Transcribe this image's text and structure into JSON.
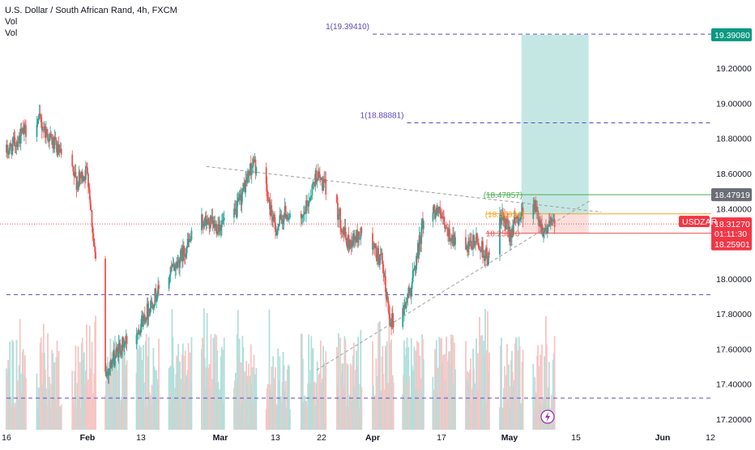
{
  "header": {
    "title": "U.S. Dollar / South African Rand, 4h, FXCM",
    "indicator_1": "Vol",
    "indicator_2": "Vol"
  },
  "colors": {
    "up": "#26a69a",
    "down": "#ef5350",
    "vol_up": "#b2dfdb",
    "vol_down": "#f6c6c5",
    "target_zone": "#b2dfdb",
    "stop_zone": "#fbd4d2",
    "fib_dash": "#5b4bbf",
    "trend_dash": "#9e9e9e",
    "entry_line": "#f6a623",
    "target_line": "#4caf50",
    "stop_line": "#ef5350",
    "current_price": "#f23645",
    "gray_tag": "#6b6e76",
    "green_tag": "#089981"
  },
  "chart_data": {
    "type": "candlestick",
    "symbol": "USDZAR",
    "timeframe": "4h",
    "ylim": [
      17.14,
      19.52
    ],
    "y_ticks": [
      "19.20000",
      "19.00000",
      "18.80000",
      "18.60000",
      "18.40000",
      "18.20000",
      "18.00000",
      "17.80000",
      "17.60000",
      "17.40000",
      "17.20000"
    ],
    "y_tick_values": [
      19.2,
      19.0,
      18.8,
      18.6,
      18.4,
      18.2,
      18.0,
      17.8,
      17.6,
      17.4,
      17.2
    ],
    "x_ticks": [
      "16",
      "Feb",
      "13",
      "Mar",
      "13",
      "22",
      "Apr",
      "17",
      "May",
      "15",
      "Jun",
      "12"
    ],
    "x_tick_dates": [
      "2024-01-16",
      "2024-02-01",
      "2024-02-13",
      "2024-03-01",
      "2024-03-13",
      "2024-03-22",
      "2024-04-01",
      "2024-04-17",
      "2024-05-01",
      "2024-05-15",
      "2024-06-01",
      "2024-06-12"
    ],
    "date_range": [
      "2024-01-16",
      "2024-06-12"
    ],
    "last_data_date": "2024-05-10",
    "price_path": [
      {
        "date": "2024-01-16",
        "price": 18.72
      },
      {
        "date": "2024-01-22",
        "price": 18.92
      },
      {
        "date": "2024-01-30",
        "price": 18.55
      },
      {
        "date": "2024-02-01",
        "price": 18.62
      },
      {
        "date": "2024-02-05",
        "price": 17.45
      },
      {
        "date": "2024-02-08",
        "price": 17.6
      },
      {
        "date": "2024-02-12",
        "price": 17.7
      },
      {
        "date": "2024-02-16",
        "price": 17.9
      },
      {
        "date": "2024-02-21",
        "price": 18.1
      },
      {
        "date": "2024-02-26",
        "price": 18.33
      },
      {
        "date": "2024-02-29",
        "price": 18.3
      },
      {
        "date": "2024-03-04",
        "price": 18.35
      },
      {
        "date": "2024-03-08",
        "price": 18.66
      },
      {
        "date": "2024-03-10",
        "price": 18.6
      },
      {
        "date": "2024-03-13",
        "price": 18.28
      },
      {
        "date": "2024-03-15",
        "price": 18.38
      },
      {
        "date": "2024-03-18",
        "price": 18.3
      },
      {
        "date": "2024-03-21",
        "price": 18.6
      },
      {
        "date": "2024-03-25",
        "price": 18.4
      },
      {
        "date": "2024-03-27",
        "price": 18.2
      },
      {
        "date": "2024-03-30",
        "price": 18.26
      },
      {
        "date": "2024-04-03",
        "price": 18.1
      },
      {
        "date": "2024-04-05",
        "price": 17.78
      },
      {
        "date": "2024-04-07",
        "price": 17.74
      },
      {
        "date": "2024-04-10",
        "price": 17.96
      },
      {
        "date": "2024-04-13",
        "price": 18.36
      },
      {
        "date": "2024-04-16",
        "price": 18.4
      },
      {
        "date": "2024-04-18",
        "price": 18.27
      },
      {
        "date": "2024-04-22",
        "price": 18.15
      },
      {
        "date": "2024-04-24",
        "price": 18.22
      },
      {
        "date": "2024-04-27",
        "price": 18.1
      },
      {
        "date": "2024-04-29",
        "price": 18.36
      },
      {
        "date": "2024-05-01",
        "price": 18.26
      },
      {
        "date": "2024-05-03",
        "price": 18.36
      },
      {
        "date": "2024-05-06",
        "price": 18.44
      },
      {
        "date": "2024-05-08",
        "price": 18.28
      },
      {
        "date": "2024-05-10",
        "price": 18.31
      }
    ],
    "current_price": "18.31270",
    "countdown": "01:11:30",
    "symbol_tag": "USDZAR",
    "price_labels": [
      {
        "text": "19.39080",
        "value": 19.3908,
        "style": "green"
      },
      {
        "text": "18.47919",
        "value": 18.47919,
        "style": "gray"
      },
      {
        "text": "18.25901",
        "value": 18.25901,
        "style": "red"
      }
    ],
    "fib_levels": [
      {
        "label": "1(19.39410)",
        "value": 19.3941,
        "start_date": "2024-04-01"
      },
      {
        "label": "1(18.88881)",
        "value": 18.88881,
        "start_date": "2024-04-09"
      },
      {
        "label": "",
        "value": 17.91,
        "start_date": "2024-01-16"
      },
      {
        "label": "",
        "value": 17.32,
        "start_date": "2024-01-16"
      }
    ],
    "position": {
      "start_date": "2024-05-03",
      "end_date": "2024-05-17",
      "entry": 18.37,
      "target": 19.39,
      "stop": 18.26,
      "target_label": "(18.47857)",
      "entry_label": "(18.36934)",
      "stop_label": "18.25870",
      "target_line_value": 18.47919
    },
    "trendlines": [
      {
        "from": [
          "2024-02-27",
          18.64
        ],
        "to": [
          "2024-05-20",
          18.38
        ]
      },
      {
        "from": [
          "2024-03-21",
          17.48
        ],
        "to": [
          "2024-05-18",
          18.45
        ]
      }
    ]
  },
  "ui": {
    "lightning_icon": "lightning-bolt-icon"
  }
}
